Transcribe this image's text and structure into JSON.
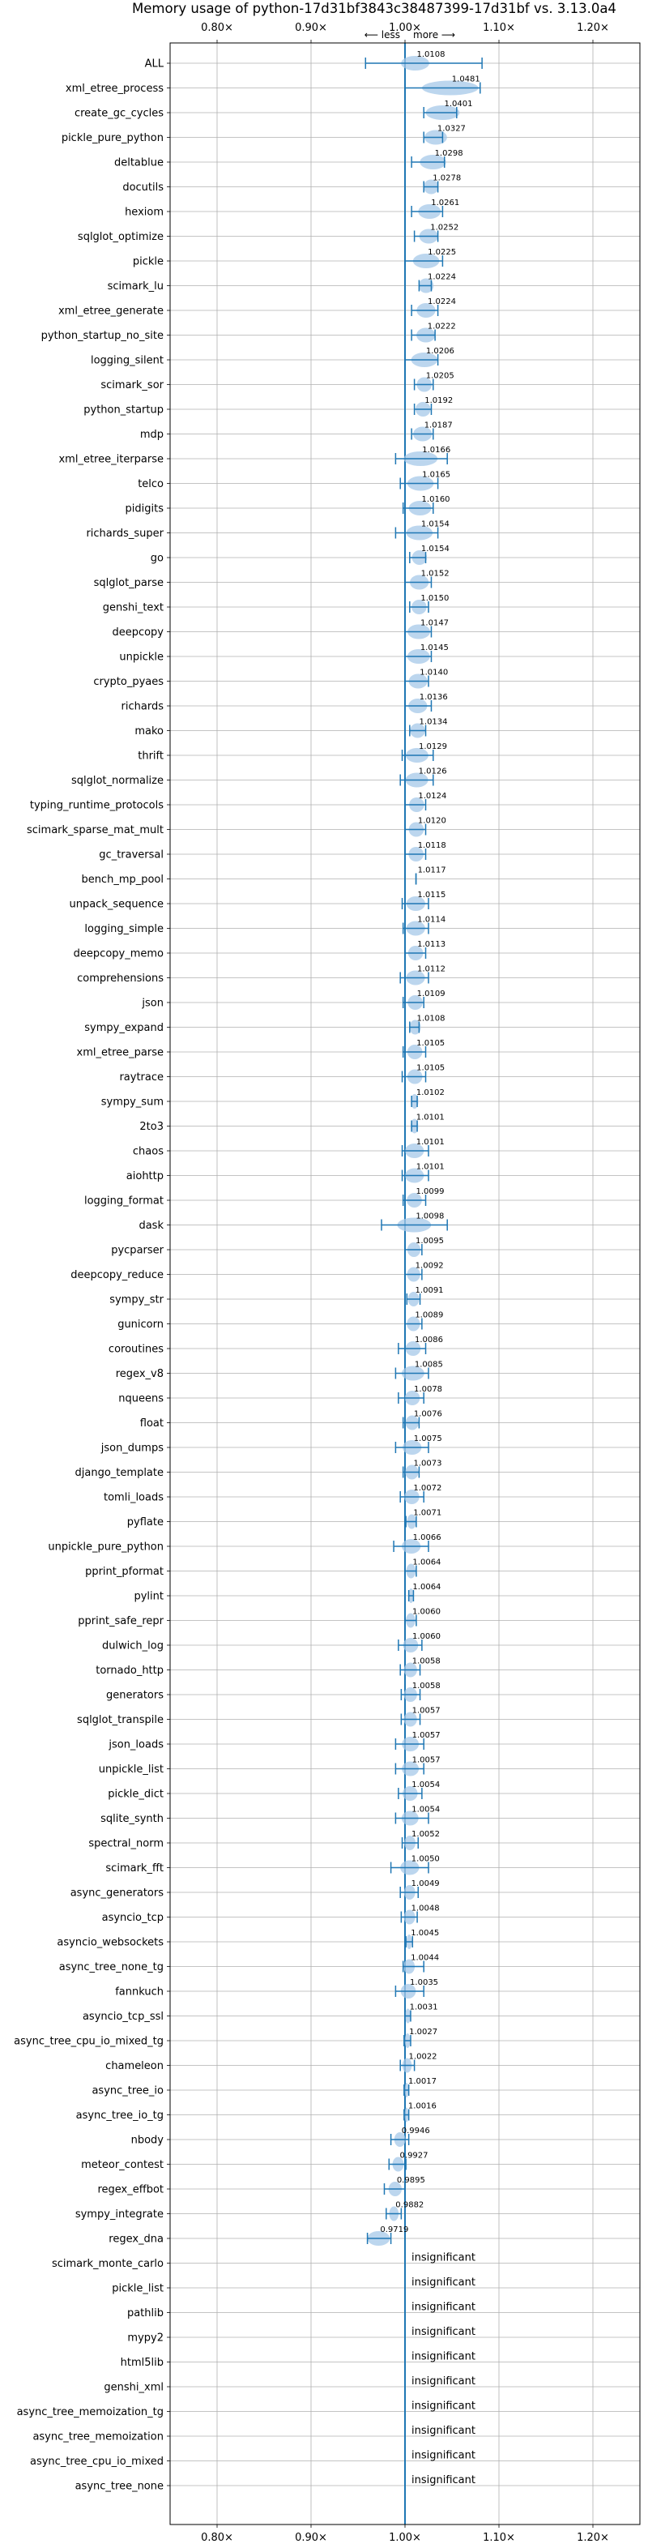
{
  "chart_data": {
    "type": "violin",
    "title": "Memory usage of python-17d31bf3843c38487399-17d31bf vs. 3.13.0a4",
    "xlabel": "",
    "ylabel": "",
    "annotation_less": "⟵ less",
    "annotation_more": "more ⟶",
    "xlim": [
      0.75,
      1.25
    ],
    "xticks": [
      0.8,
      0.9,
      1.0,
      1.1,
      1.2
    ],
    "xtick_labels": [
      "0.80×",
      "0.90×",
      "1.00×",
      "1.10×",
      "1.20×"
    ],
    "grid": true,
    "reference_line": 1.0,
    "colors": {
      "line": "#1f77b4",
      "fill": "#a6c8e8",
      "grid": "#b0b0b0"
    },
    "insignificant_label": "insignificant",
    "benchmarks": [
      {
        "name": "ALL",
        "value": 1.0108,
        "label": "1.0108",
        "lo": 0.958,
        "hi": 1.082,
        "spread": 0.015,
        "significant": true
      },
      {
        "name": "xml_etree_process",
        "value": 1.0481,
        "label": "1.0481",
        "lo": 1.0,
        "hi": 1.08,
        "spread": 0.03,
        "significant": true
      },
      {
        "name": "create_gc_cycles",
        "value": 1.0401,
        "label": "1.0401",
        "lo": 1.02,
        "hi": 1.055,
        "spread": 0.018,
        "significant": true
      },
      {
        "name": "pickle_pure_python",
        "value": 1.0327,
        "label": "1.0327",
        "lo": 1.02,
        "hi": 1.04,
        "spread": 0.012,
        "significant": true
      },
      {
        "name": "deltablue",
        "value": 1.0298,
        "label": "1.0298",
        "lo": 1.007,
        "hi": 1.042,
        "spread": 0.014,
        "significant": true
      },
      {
        "name": "docutils",
        "value": 1.0278,
        "label": "1.0278",
        "lo": 1.02,
        "hi": 1.035,
        "spread": 0.008,
        "significant": true
      },
      {
        "name": "hexiom",
        "value": 1.0261,
        "label": "1.0261",
        "lo": 1.007,
        "hi": 1.04,
        "spread": 0.012,
        "significant": true
      },
      {
        "name": "sqlglot_optimize",
        "value": 1.0252,
        "label": "1.0252",
        "lo": 1.01,
        "hi": 1.035,
        "spread": 0.01,
        "significant": true
      },
      {
        "name": "pickle",
        "value": 1.0225,
        "label": "1.0225",
        "lo": 1.0,
        "hi": 1.04,
        "spread": 0.014,
        "significant": true
      },
      {
        "name": "scimark_lu",
        "value": 1.0224,
        "label": "1.0224",
        "lo": 1.015,
        "hi": 1.028,
        "spread": 0.008,
        "significant": true
      },
      {
        "name": "xml_etree_generate",
        "value": 1.0224,
        "label": "1.0224",
        "lo": 1.007,
        "hi": 1.035,
        "spread": 0.01,
        "significant": true
      },
      {
        "name": "python_startup_no_site",
        "value": 1.0222,
        "label": "1.0222",
        "lo": 1.007,
        "hi": 1.032,
        "spread": 0.01,
        "significant": true
      },
      {
        "name": "logging_silent",
        "value": 1.0206,
        "label": "1.0206",
        "lo": 1.0,
        "hi": 1.035,
        "spread": 0.014,
        "significant": true
      },
      {
        "name": "scimark_sor",
        "value": 1.0205,
        "label": "1.0205",
        "lo": 1.01,
        "hi": 1.03,
        "spread": 0.008,
        "significant": true
      },
      {
        "name": "python_startup",
        "value": 1.0192,
        "label": "1.0192",
        "lo": 1.01,
        "hi": 1.028,
        "spread": 0.008,
        "significant": true
      },
      {
        "name": "mdp",
        "value": 1.0187,
        "label": "1.0187",
        "lo": 1.007,
        "hi": 1.03,
        "spread": 0.01,
        "significant": true
      },
      {
        "name": "xml_etree_iterparse",
        "value": 1.0166,
        "label": "1.0166",
        "lo": 0.99,
        "hi": 1.045,
        "spread": 0.018,
        "significant": true
      },
      {
        "name": "telco",
        "value": 1.0165,
        "label": "1.0165",
        "lo": 0.995,
        "hi": 1.035,
        "spread": 0.014,
        "significant": true
      },
      {
        "name": "pidigits",
        "value": 1.016,
        "label": "1.0160",
        "lo": 0.998,
        "hi": 1.03,
        "spread": 0.012,
        "significant": true
      },
      {
        "name": "richards_super",
        "value": 1.0154,
        "label": "1.0154",
        "lo": 0.99,
        "hi": 1.035,
        "spread": 0.014,
        "significant": true
      },
      {
        "name": "go",
        "value": 1.0154,
        "label": "1.0154",
        "lo": 1.005,
        "hi": 1.022,
        "spread": 0.008,
        "significant": true
      },
      {
        "name": "sqlglot_parse",
        "value": 1.0152,
        "label": "1.0152",
        "lo": 1.0,
        "hi": 1.028,
        "spread": 0.01,
        "significant": true
      },
      {
        "name": "genshi_text",
        "value": 1.015,
        "label": "1.0150",
        "lo": 1.005,
        "hi": 1.025,
        "spread": 0.008,
        "significant": true
      },
      {
        "name": "deepcopy",
        "value": 1.0147,
        "label": "1.0147",
        "lo": 1.0,
        "hi": 1.028,
        "spread": 0.012,
        "significant": true
      },
      {
        "name": "unpickle",
        "value": 1.0145,
        "label": "1.0145",
        "lo": 1.0,
        "hi": 1.028,
        "spread": 0.012,
        "significant": true
      },
      {
        "name": "crypto_pyaes",
        "value": 1.014,
        "label": "1.0140",
        "lo": 1.0,
        "hi": 1.025,
        "spread": 0.01,
        "significant": true
      },
      {
        "name": "richards",
        "value": 1.0136,
        "label": "1.0136",
        "lo": 1.0,
        "hi": 1.028,
        "spread": 0.01,
        "significant": true
      },
      {
        "name": "mako",
        "value": 1.0134,
        "label": "1.0134",
        "lo": 1.005,
        "hi": 1.022,
        "spread": 0.008,
        "significant": true
      },
      {
        "name": "thrift",
        "value": 1.0129,
        "label": "1.0129",
        "lo": 0.997,
        "hi": 1.03,
        "spread": 0.012,
        "significant": true
      },
      {
        "name": "sqlglot_normalize",
        "value": 1.0126,
        "label": "1.0126",
        "lo": 0.995,
        "hi": 1.03,
        "spread": 0.012,
        "significant": true
      },
      {
        "name": "typing_runtime_protocols",
        "value": 1.0124,
        "label": "1.0124",
        "lo": 1.0,
        "hi": 1.022,
        "spread": 0.008,
        "significant": true
      },
      {
        "name": "scimark_sparse_mat_mult",
        "value": 1.012,
        "label": "1.0120",
        "lo": 1.0,
        "hi": 1.022,
        "spread": 0.008,
        "significant": true
      },
      {
        "name": "gc_traversal",
        "value": 1.0118,
        "label": "1.0118",
        "lo": 1.0,
        "hi": 1.022,
        "spread": 0.008,
        "significant": true
      },
      {
        "name": "bench_mp_pool",
        "value": 1.0117,
        "label": "1.0117",
        "lo": 1.0117,
        "hi": 1.0117,
        "spread": 0.0,
        "significant": true
      },
      {
        "name": "unpack_sequence",
        "value": 1.0115,
        "label": "1.0115",
        "lo": 0.997,
        "hi": 1.025,
        "spread": 0.01,
        "significant": true
      },
      {
        "name": "logging_simple",
        "value": 1.0114,
        "label": "1.0114",
        "lo": 0.998,
        "hi": 1.025,
        "spread": 0.01,
        "significant": true
      },
      {
        "name": "deepcopy_memo",
        "value": 1.0113,
        "label": "1.0113",
        "lo": 1.0,
        "hi": 1.022,
        "spread": 0.008,
        "significant": true
      },
      {
        "name": "comprehensions",
        "value": 1.0112,
        "label": "1.0112",
        "lo": 0.995,
        "hi": 1.025,
        "spread": 0.01,
        "significant": true
      },
      {
        "name": "json",
        "value": 1.0109,
        "label": "1.0109",
        "lo": 0.998,
        "hi": 1.02,
        "spread": 0.008,
        "significant": true
      },
      {
        "name": "sympy_expand",
        "value": 1.0108,
        "label": "1.0108",
        "lo": 1.005,
        "hi": 1.015,
        "spread": 0.006,
        "significant": true
      },
      {
        "name": "xml_etree_parse",
        "value": 1.0105,
        "label": "1.0105",
        "lo": 0.998,
        "hi": 1.022,
        "spread": 0.008,
        "significant": true
      },
      {
        "name": "raytrace",
        "value": 1.0105,
        "label": "1.0105",
        "lo": 0.997,
        "hi": 1.022,
        "spread": 0.008,
        "significant": true
      },
      {
        "name": "sympy_sum",
        "value": 1.0102,
        "label": "1.0102",
        "lo": 1.007,
        "hi": 1.013,
        "spread": 0.004,
        "significant": true
      },
      {
        "name": "2to3",
        "value": 1.0101,
        "label": "1.0101",
        "lo": 1.007,
        "hi": 1.013,
        "spread": 0.004,
        "significant": true
      },
      {
        "name": "chaos",
        "value": 1.0101,
        "label": "1.0101",
        "lo": 0.997,
        "hi": 1.025,
        "spread": 0.01,
        "significant": true
      },
      {
        "name": "aiohttp",
        "value": 1.0101,
        "label": "1.0101",
        "lo": 0.997,
        "hi": 1.025,
        "spread": 0.01,
        "significant": true
      },
      {
        "name": "logging_format",
        "value": 1.0099,
        "label": "1.0099",
        "lo": 0.998,
        "hi": 1.022,
        "spread": 0.008,
        "significant": true
      },
      {
        "name": "dask",
        "value": 1.0098,
        "label": "1.0098",
        "lo": 0.975,
        "hi": 1.045,
        "spread": 0.018,
        "significant": true
      },
      {
        "name": "pycparser",
        "value": 1.0095,
        "label": "1.0095",
        "lo": 1.0,
        "hi": 1.018,
        "spread": 0.007,
        "significant": true
      },
      {
        "name": "deepcopy_reduce",
        "value": 1.0092,
        "label": "1.0092",
        "lo": 1.0,
        "hi": 1.018,
        "spread": 0.007,
        "significant": true
      },
      {
        "name": "sympy_str",
        "value": 1.0091,
        "label": "1.0091",
        "lo": 1.002,
        "hi": 1.016,
        "spread": 0.006,
        "significant": true
      },
      {
        "name": "gunicorn",
        "value": 1.0089,
        "label": "1.0089",
        "lo": 1.0,
        "hi": 1.018,
        "spread": 0.007,
        "significant": true
      },
      {
        "name": "coroutines",
        "value": 1.0086,
        "label": "1.0086",
        "lo": 0.993,
        "hi": 1.022,
        "spread": 0.008,
        "significant": true
      },
      {
        "name": "regex_v8",
        "value": 1.0085,
        "label": "1.0085",
        "lo": 0.99,
        "hi": 1.025,
        "spread": 0.012,
        "significant": true
      },
      {
        "name": "nqueens",
        "value": 1.0078,
        "label": "1.0078",
        "lo": 0.993,
        "hi": 1.02,
        "spread": 0.008,
        "significant": true
      },
      {
        "name": "float",
        "value": 1.0076,
        "label": "1.0076",
        "lo": 0.998,
        "hi": 1.015,
        "spread": 0.007,
        "significant": true
      },
      {
        "name": "json_dumps",
        "value": 1.0075,
        "label": "1.0075",
        "lo": 0.99,
        "hi": 1.025,
        "spread": 0.01,
        "significant": true
      },
      {
        "name": "django_template",
        "value": 1.0073,
        "label": "1.0073",
        "lo": 0.998,
        "hi": 1.015,
        "spread": 0.007,
        "significant": true
      },
      {
        "name": "tomli_loads",
        "value": 1.0072,
        "label": "1.0072",
        "lo": 0.995,
        "hi": 1.02,
        "spread": 0.008,
        "significant": true
      },
      {
        "name": "pyflate",
        "value": 1.0071,
        "label": "1.0071",
        "lo": 1.001,
        "hi": 1.012,
        "spread": 0.005,
        "significant": true
      },
      {
        "name": "unpickle_pure_python",
        "value": 1.0066,
        "label": "1.0066",
        "lo": 0.988,
        "hi": 1.025,
        "spread": 0.01,
        "significant": true
      },
      {
        "name": "pprint_pformat",
        "value": 1.0064,
        "label": "1.0064",
        "lo": 1.0,
        "hi": 1.012,
        "spread": 0.005,
        "significant": true
      },
      {
        "name": "pylint",
        "value": 1.0064,
        "label": "1.0064",
        "lo": 1.004,
        "hi": 1.009,
        "spread": 0.003,
        "significant": true
      },
      {
        "name": "pprint_safe_repr",
        "value": 1.006,
        "label": "1.0060",
        "lo": 1.0,
        "hi": 1.012,
        "spread": 0.005,
        "significant": true
      },
      {
        "name": "dulwich_log",
        "value": 1.006,
        "label": "1.0060",
        "lo": 0.993,
        "hi": 1.018,
        "spread": 0.008,
        "significant": true
      },
      {
        "name": "tornado_http",
        "value": 1.0058,
        "label": "1.0058",
        "lo": 0.995,
        "hi": 1.016,
        "spread": 0.007,
        "significant": true
      },
      {
        "name": "generators",
        "value": 1.0058,
        "label": "1.0058",
        "lo": 0.996,
        "hi": 1.016,
        "spread": 0.007,
        "significant": true
      },
      {
        "name": "sqlglot_transpile",
        "value": 1.0057,
        "label": "1.0057",
        "lo": 0.996,
        "hi": 1.016,
        "spread": 0.007,
        "significant": true
      },
      {
        "name": "json_loads",
        "value": 1.0057,
        "label": "1.0057",
        "lo": 0.99,
        "hi": 1.02,
        "spread": 0.009,
        "significant": true
      },
      {
        "name": "unpickle_list",
        "value": 1.0057,
        "label": "1.0057",
        "lo": 0.99,
        "hi": 1.02,
        "spread": 0.009,
        "significant": true
      },
      {
        "name": "pickle_dict",
        "value": 1.0054,
        "label": "1.0054",
        "lo": 0.993,
        "hi": 1.018,
        "spread": 0.008,
        "significant": true
      },
      {
        "name": "sqlite_synth",
        "value": 1.0054,
        "label": "1.0054",
        "lo": 0.99,
        "hi": 1.025,
        "spread": 0.009,
        "significant": true
      },
      {
        "name": "spectral_norm",
        "value": 1.0052,
        "label": "1.0052",
        "lo": 0.997,
        "hi": 1.014,
        "spread": 0.006,
        "significant": true
      },
      {
        "name": "scimark_fft",
        "value": 1.005,
        "label": "1.0050",
        "lo": 0.985,
        "hi": 1.025,
        "spread": 0.01,
        "significant": true
      },
      {
        "name": "async_generators",
        "value": 1.0049,
        "label": "1.0049",
        "lo": 0.995,
        "hi": 1.014,
        "spread": 0.006,
        "significant": true
      },
      {
        "name": "asyncio_tcp",
        "value": 1.0048,
        "label": "1.0048",
        "lo": 0.996,
        "hi": 1.013,
        "spread": 0.006,
        "significant": true
      },
      {
        "name": "asyncio_websockets",
        "value": 1.0045,
        "label": "1.0045",
        "lo": 1.001,
        "hi": 1.008,
        "spread": 0.003,
        "significant": true
      },
      {
        "name": "async_tree_none_tg",
        "value": 1.0044,
        "label": "1.0044",
        "lo": 0.998,
        "hi": 1.02,
        "spread": 0.006,
        "significant": true
      },
      {
        "name": "fannkuch",
        "value": 1.0035,
        "label": "1.0035",
        "lo": 0.99,
        "hi": 1.02,
        "spread": 0.008,
        "significant": true
      },
      {
        "name": "asyncio_tcp_ssl",
        "value": 1.0031,
        "label": "1.0031",
        "lo": 1.0,
        "hi": 1.006,
        "spread": 0.003,
        "significant": true
      },
      {
        "name": "async_tree_cpu_io_mixed_tg",
        "value": 1.0027,
        "label": "1.0027",
        "lo": 0.999,
        "hi": 1.006,
        "spread": 0.003,
        "significant": true
      },
      {
        "name": "chameleon",
        "value": 1.0022,
        "label": "1.0022",
        "lo": 0.995,
        "hi": 1.01,
        "spread": 0.005,
        "significant": true
      },
      {
        "name": "async_tree_io",
        "value": 1.0017,
        "label": "1.0017",
        "lo": 0.999,
        "hi": 1.004,
        "spread": 0.002,
        "significant": true
      },
      {
        "name": "async_tree_io_tg",
        "value": 1.0016,
        "label": "1.0016",
        "lo": 0.999,
        "hi": 1.004,
        "spread": 0.002,
        "significant": true
      },
      {
        "name": "nbody",
        "value": 0.9946,
        "label": "0.9946",
        "lo": 0.985,
        "hi": 1.004,
        "spread": 0.006,
        "significant": true
      },
      {
        "name": "meteor_contest",
        "value": 0.9927,
        "label": "0.9927",
        "lo": 0.983,
        "hi": 1.001,
        "spread": 0.006,
        "significant": true
      },
      {
        "name": "regex_effbot",
        "value": 0.9895,
        "label": "0.9895",
        "lo": 0.978,
        "hi": 1.0,
        "spread": 0.007,
        "significant": true
      },
      {
        "name": "sympy_integrate",
        "value": 0.9882,
        "label": "0.9882",
        "lo": 0.98,
        "hi": 0.996,
        "spread": 0.005,
        "significant": true
      },
      {
        "name": "regex_dna",
        "value": 0.9719,
        "label": "0.9719",
        "lo": 0.96,
        "hi": 0.985,
        "spread": 0.012,
        "significant": true
      },
      {
        "name": "scimark_monte_carlo",
        "value": 1.0,
        "label": "",
        "significant": false
      },
      {
        "name": "pickle_list",
        "value": 1.0,
        "label": "",
        "significant": false
      },
      {
        "name": "pathlib",
        "value": 1.0,
        "label": "",
        "significant": false
      },
      {
        "name": "mypy2",
        "value": 1.0,
        "label": "",
        "significant": false
      },
      {
        "name": "html5lib",
        "value": 1.0,
        "label": "",
        "significant": false
      },
      {
        "name": "genshi_xml",
        "value": 1.0,
        "label": "",
        "significant": false
      },
      {
        "name": "async_tree_memoization_tg",
        "value": 1.0,
        "label": "",
        "significant": false
      },
      {
        "name": "async_tree_memoization",
        "value": 1.0,
        "label": "",
        "significant": false
      },
      {
        "name": "async_tree_cpu_io_mixed",
        "value": 1.0,
        "label": "",
        "significant": false
      },
      {
        "name": "async_tree_none",
        "value": 1.0,
        "label": "",
        "significant": false
      }
    ]
  }
}
